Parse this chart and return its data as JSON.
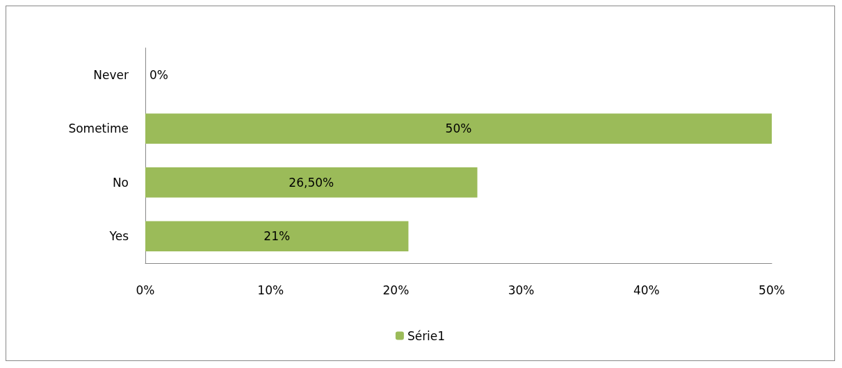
{
  "chart_data": {
    "type": "bar",
    "orientation": "horizontal",
    "categories": [
      "Never",
      "Sometime",
      "No",
      "Yes"
    ],
    "series": [
      {
        "name": "Série1",
        "color": "#9bbb59",
        "values": [
          0,
          50,
          26.5,
          21
        ],
        "value_labels": [
          "0%",
          "50%",
          "26,50%",
          "21%"
        ]
      }
    ],
    "xlim": [
      0,
      50
    ],
    "xticks": [
      {
        "value": 0,
        "label": "0%"
      },
      {
        "value": 10,
        "label": "10%"
      },
      {
        "value": 20,
        "label": "20%"
      },
      {
        "value": 30,
        "label": "30%"
      },
      {
        "value": 40,
        "label": "40%"
      },
      {
        "value": 50,
        "label": "50%"
      }
    ],
    "grid": false,
    "legend": "bottom"
  }
}
